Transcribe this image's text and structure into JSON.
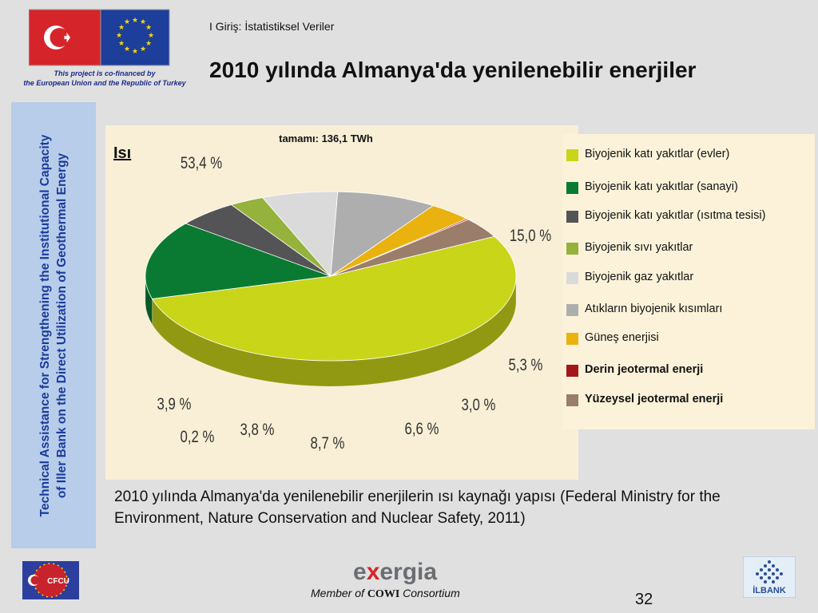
{
  "header": {
    "section_label": "I Giriş: İstatistiksel Veriler",
    "title": "2010 yılında Almanya'da yenilenebilir enerjiler",
    "cofinanced_line1": "This project is co-financed by",
    "cofinanced_line2": "the European Union and the Republic of Turkey"
  },
  "side_panel": {
    "line1": "Technical Assistance for Strengthening the Institutional Capacity",
    "line2": "of Iller Bank on the Direct Utilization of Geothermal Energy"
  },
  "colors": {
    "biyojenik_kati_evler": "#c9d519",
    "biyojenik_kati_sanayi": "#0a7a32",
    "biyojenik_kati_isitma": "#545456",
    "biyojenik_sivi": "#95b23c",
    "biyojenik_gaz": "#dadada",
    "atik": "#aeaeae",
    "gunes": "#e9b20e",
    "derin_jeotermal": "#a5161b",
    "yuzeysel_jeotermal": "#9a7d6b"
  },
  "chart_data": {
    "type": "pie",
    "title": "Isı",
    "subtitle": "tamamı: 136,1 TWh",
    "slices": [
      {
        "name": "Biyojenik katı yakıtlar (evler)",
        "value": 53.4,
        "label": "53,4 %",
        "color": "#c9d519"
      },
      {
        "name": "Biyojenik katı yakıtlar (sanayi)",
        "value": 15.0,
        "label": "15,0 %",
        "color": "#0a7a32"
      },
      {
        "name": "Biyojenik katı yakıtlar (ısıtma tesisi)",
        "value": 5.3,
        "label": "5,3 %",
        "color": "#545456"
      },
      {
        "name": "Biyojenik sıvı yakıtlar",
        "value": 3.0,
        "label": "3,0 %",
        "color": "#95b23c"
      },
      {
        "name": "Biyojenik gaz yakıtlar",
        "value": 6.6,
        "label": "6,6 %",
        "color": "#dadada"
      },
      {
        "name": "Atıkların biyojenik kısımları",
        "value": 8.7,
        "label": "8,7 %",
        "color": "#aeaeae"
      },
      {
        "name": "Güneş enerjisi",
        "value": 3.8,
        "label": "3,8 %",
        "color": "#e9b20e"
      },
      {
        "name": "Derin jeotermal enerji",
        "value": 0.2,
        "label": "0,2 %",
        "color": "#a5161b"
      },
      {
        "name": "Yüzeysel jeotermal enerji",
        "value": 3.9,
        "label": "3,9 %",
        "color": "#9a7d6b"
      }
    ],
    "legend_placement": "right"
  },
  "caption": "2010 yılında Almanya'da yenilenebilir enerjilerin ısı kaynağı yapısı (Federal Ministry for the Environment, Nature Conservation and Nuclear Safety, 2011)",
  "footer": {
    "cfcu_text": "CFCU",
    "exergia_text_e": "e",
    "exergia_text_x": "x",
    "exergia_text_rest": "ergia",
    "member_prefix": "Member of",
    "member_cowi": "COWI",
    "member_suffix": "Consortium",
    "ilbank_text": "İLBANK",
    "page_number": "32"
  }
}
